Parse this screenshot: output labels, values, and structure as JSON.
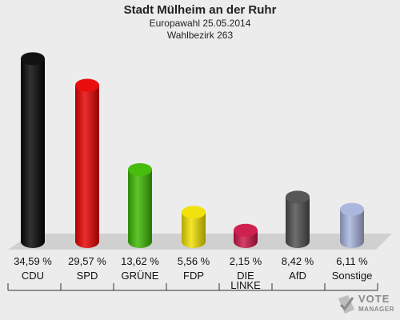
{
  "header": {
    "title": "Stadt Mülheim an der Ruhr",
    "subtitle_1": "Europawahl 25.05.2014",
    "subtitle_2": "Wahlbezirk 263"
  },
  "logo": {
    "line1": "VOTE",
    "line2": "MANAGER"
  },
  "chart_data": {
    "type": "bar",
    "title": "Stadt Mülheim an der Ruhr",
    "subtitle": "Europawahl 25.05.2014 · Wahlbezirk 263",
    "categories": [
      "CDU",
      "SPD",
      "GRÜNE",
      "FDP",
      "DIE LINKE",
      "AfD",
      "Sonstige"
    ],
    "category_lines": [
      [
        "CDU"
      ],
      [
        "SPD"
      ],
      [
        "GRÜNE"
      ],
      [
        "FDP"
      ],
      [
        "DIE",
        "LINKE"
      ],
      [
        "AfD"
      ],
      [
        "Sonstige"
      ]
    ],
    "values": [
      34.59,
      29.57,
      13.62,
      5.56,
      2.15,
      8.42,
      6.11
    ],
    "value_labels": [
      "34,59 %",
      "29,57 %",
      "13,62 %",
      "5,56 %",
      "2,15 %",
      "8,42 %",
      "6,11 %"
    ],
    "colors": [
      "#050505",
      "#e80000",
      "#3cb800",
      "#f0e000",
      "#cc1547",
      "#4e4e4e",
      "#a7b3dc"
    ],
    "ylim": [
      0,
      36
    ],
    "grid": false,
    "legend": "none"
  }
}
